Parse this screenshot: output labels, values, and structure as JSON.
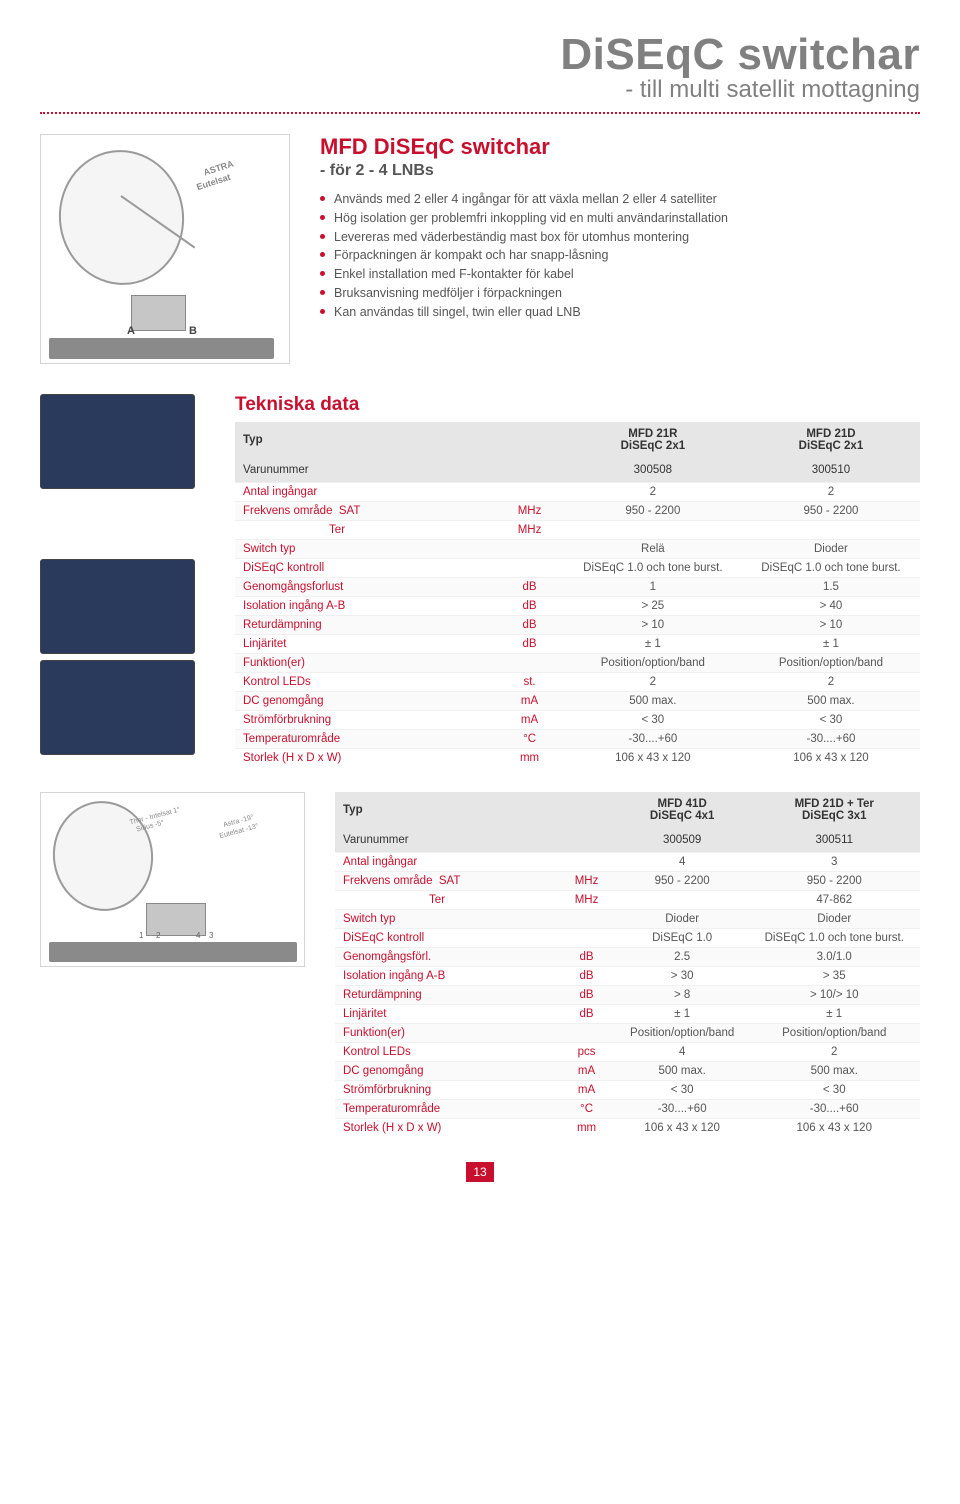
{
  "header": {
    "title": "DiSEqC switchar",
    "subtitle": "- till multi satellit mottagning"
  },
  "intro": {
    "heading": "MFD DiSEqC switchar",
    "subheading": "- för 2 - 4 LNBs",
    "sat1": "ASTRA",
    "sat2": "Eutelsat",
    "portA": "A",
    "portB": "B",
    "bullets": [
      "Används med 2 eller 4 ingångar för att växla mellan 2 eller 4 satelliter",
      "Hög isolation ger problemfri inkoppling vid en multi användarinstallation",
      "Levereras med väderbeständig mast box för utomhus montering",
      "Förpackningen är kompakt och har snapp-låsning",
      "Enkel installation med F-kontakter för kabel",
      "Bruksanvisning medföljer i förpackningen",
      "Kan användas till singel, twin eller quad LNB"
    ]
  },
  "tech_heading": "Tekniska data",
  "table1": {
    "typ_label": "Typ",
    "varu_label": "Varunummer",
    "cols": [
      {
        "name": "MFD 21R",
        "sub": "DiSEqC 2x1",
        "varu": "300508"
      },
      {
        "name": "MFD 21D",
        "sub": "DiSEqC 2x1",
        "varu": "300510"
      }
    ],
    "rows": [
      {
        "label": "Antal ingångar",
        "unit": "",
        "v": [
          "2",
          "2"
        ]
      },
      {
        "label": "Frekvens område  SAT",
        "unit": "MHz",
        "v": [
          "950 - 2200",
          "950 - 2200"
        ]
      },
      {
        "label": "                           Ter",
        "unit": "MHz",
        "v": [
          "",
          ""
        ]
      },
      {
        "label": "Switch typ",
        "unit": "",
        "v": [
          "Relä",
          "Dioder"
        ]
      },
      {
        "label": "DiSEqC kontroll",
        "unit": "",
        "v": [
          "DiSEqC 1.0 och tone burst.",
          "DiSEqC 1.0 och tone burst."
        ]
      },
      {
        "label": "Genomgångsforlust",
        "unit": "dB",
        "v": [
          "1",
          "1.5"
        ]
      },
      {
        "label": "Isolation ingång A-B",
        "unit": "dB",
        "v": [
          "> 25",
          "> 40"
        ]
      },
      {
        "label": "Returdämpning",
        "unit": "dB",
        "v": [
          "> 10",
          "> 10"
        ]
      },
      {
        "label": "Linjäritet",
        "unit": "dB",
        "v": [
          "± 1",
          "± 1"
        ]
      },
      {
        "label": "Funktion(er)",
        "unit": "",
        "v": [
          "Position/option/band",
          "Position/option/band"
        ]
      },
      {
        "label": "Kontrol LEDs",
        "unit": "st.",
        "v": [
          "2",
          "2"
        ]
      },
      {
        "label": "DC genomgång",
        "unit": "mA",
        "v": [
          "500 max.",
          "500 max."
        ]
      },
      {
        "label": "Strömförbrukning",
        "unit": "mA",
        "v": [
          "< 30",
          "< 30"
        ]
      },
      {
        "label": "Temperaturområde",
        "unit": "°C",
        "v": [
          "-30....+60",
          "-30....+60"
        ]
      },
      {
        "label": "Storlek (H x D x W)",
        "unit": "mm",
        "v": [
          "106 x 43 x 120",
          "106 x 43 x 120"
        ]
      }
    ]
  },
  "table2": {
    "typ_label": "Typ",
    "varu_label": "Varunummer",
    "thor": "Thor - Intelsat 1°",
    "sirius": "Sirius -5°",
    "astra": "Astra -19°",
    "eutel": "Eutelsat -13°",
    "cols": [
      {
        "name": "MFD 41D",
        "sub": "DiSEqC 4x1",
        "varu": "300509"
      },
      {
        "name": "MFD 21D + Ter",
        "sub": "DiSEqC 3x1",
        "varu": "300511"
      }
    ],
    "rows": [
      {
        "label": "Antal ingångar",
        "unit": "",
        "v": [
          "4",
          "3"
        ]
      },
      {
        "label": "Frekvens område  SAT",
        "unit": "MHz",
        "v": [
          "950 - 2200",
          "950 - 2200"
        ]
      },
      {
        "label": "                           Ter",
        "unit": "MHz",
        "v": [
          "",
          "47-862"
        ]
      },
      {
        "label": "Switch typ",
        "unit": "",
        "v": [
          "Dioder",
          "Dioder"
        ]
      },
      {
        "label": "DiSEqC kontroll",
        "unit": "",
        "v": [
          "DiSEqC 1.0",
          "DiSEqC 1.0 och tone burst."
        ]
      },
      {
        "label": "Genomgångsförl.",
        "unit": "dB",
        "v": [
          "2.5",
          "3.0/1.0"
        ]
      },
      {
        "label": "Isolation ingång A-B",
        "unit": "dB",
        "v": [
          "> 30",
          "> 35"
        ]
      },
      {
        "label": "Returdämpning",
        "unit": "dB",
        "v": [
          "> 8",
          "> 10/> 10"
        ]
      },
      {
        "label": "Linjäritet",
        "unit": "dB",
        "v": [
          "± 1",
          "± 1"
        ]
      },
      {
        "label": "Funktion(er)",
        "unit": "",
        "v": [
          "Position/option/band",
          "Position/option/band"
        ]
      },
      {
        "label": "Kontrol LEDs",
        "unit": "pcs",
        "v": [
          "4",
          "2"
        ]
      },
      {
        "label": "DC genomgång",
        "unit": "mA",
        "v": [
          "500 max.",
          "500 max."
        ]
      },
      {
        "label": "Strömförbrukning",
        "unit": "mA",
        "v": [
          "< 30",
          "< 30"
        ]
      },
      {
        "label": "Temperaturområde",
        "unit": "°C",
        "v": [
          "-30....+60",
          "-30....+60"
        ]
      },
      {
        "label": "Storlek (H x D x W)",
        "unit": "mm",
        "v": [
          "106 x 43 x 120",
          "106 x 43 x 120"
        ]
      }
    ]
  },
  "page_number": "13",
  "colors": {
    "accent": "#c8102e",
    "text": "#555555",
    "header_bg": "#e6e6e6"
  }
}
